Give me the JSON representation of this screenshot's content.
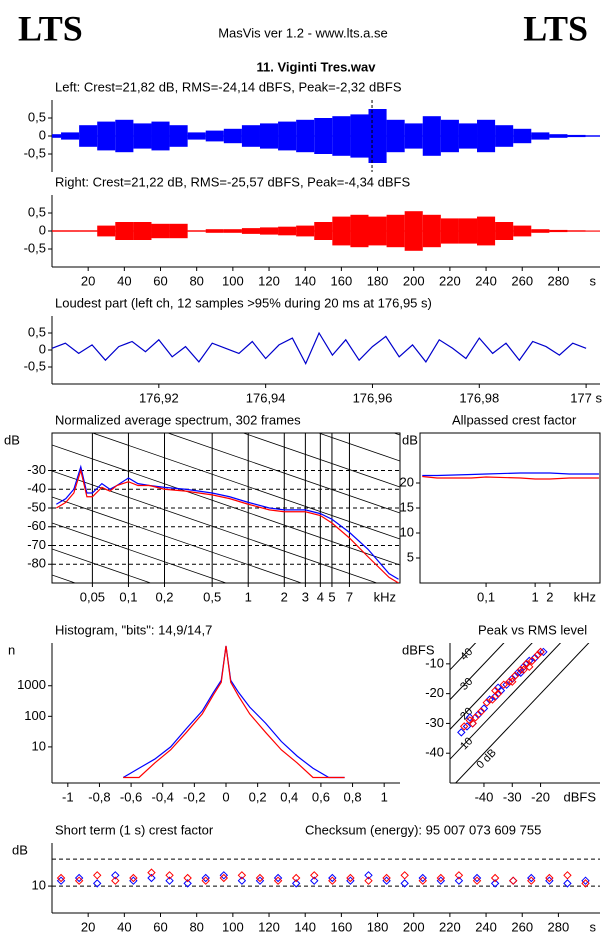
{
  "header": {
    "left": "LTS",
    "center": "MasVis ver 1.2 - www.lts.a.se",
    "right": "LTS",
    "file": "11. Viginti Tres.wav"
  },
  "chart_data": [
    {
      "type": "area",
      "title": "Left: Crest=21,82 dB, RMS=-24,14 dBFS, Peak=-2,32 dBFS",
      "x": [
        0,
        10,
        20,
        30,
        40,
        50,
        60,
        70,
        80,
        90,
        100,
        110,
        120,
        130,
        140,
        150,
        160,
        170,
        180,
        190,
        200,
        210,
        220,
        230,
        240,
        250,
        260,
        270,
        280,
        290,
        300
      ],
      "series": [
        {
          "color": "#0000ff",
          "values": [
            0.05,
            0.1,
            0.3,
            0.4,
            0.45,
            0.35,
            0.4,
            0.3,
            0.1,
            0.15,
            0.2,
            0.3,
            0.35,
            0.4,
            0.45,
            0.5,
            0.55,
            0.6,
            0.75,
            0.45,
            0.35,
            0.55,
            0.45,
            0.35,
            0.45,
            0.3,
            0.2,
            0.1,
            0.05,
            0.03,
            0.02
          ]
        }
      ],
      "marker": 176.95,
      "xlim": [
        0,
        303
      ],
      "ylim": [
        -1,
        1
      ],
      "yticks": [
        {
          "value": 0.5,
          "label": "0,5"
        },
        0,
        {
          "value": -0.5,
          "label": "-0,5"
        }
      ]
    },
    {
      "type": "area",
      "title": "Right: Crest=21,22 dB, RMS=-25,57 dBFS, Peak=-4,34 dBFS",
      "x": [
        0,
        10,
        20,
        30,
        40,
        50,
        60,
        70,
        80,
        90,
        100,
        110,
        120,
        130,
        140,
        150,
        160,
        170,
        180,
        190,
        200,
        210,
        220,
        230,
        240,
        250,
        260,
        270,
        280,
        290,
        300
      ],
      "series": [
        {
          "color": "#ff0000",
          "values": [
            0.02,
            0.02,
            0.02,
            0.15,
            0.25,
            0.25,
            0.2,
            0.2,
            0.02,
            0.05,
            0.05,
            0.08,
            0.1,
            0.12,
            0.15,
            0.25,
            0.4,
            0.45,
            0.4,
            0.45,
            0.55,
            0.45,
            0.35,
            0.35,
            0.4,
            0.25,
            0.15,
            0.05,
            0.03,
            0.02,
            0.01
          ]
        }
      ],
      "xlim": [
        0,
        303
      ],
      "ylim": [
        -1,
        1
      ],
      "yticks": [
        {
          "value": 0.5,
          "label": "0,5"
        },
        0,
        {
          "value": -0.5,
          "label": "-0,5"
        }
      ],
      "xticks": [
        20,
        40,
        60,
        80,
        100,
        120,
        140,
        160,
        180,
        200,
        220,
        240,
        260,
        280
      ],
      "xlabel": "s"
    },
    {
      "type": "line",
      "title": "Loudest part (left  ch, 12 samples >95% during 20 ms at 176,95 s)",
      "x": [
        176.9,
        176.9025,
        176.905,
        176.9075,
        176.91,
        176.9125,
        176.915,
        176.9175,
        176.92,
        176.9225,
        176.925,
        176.9275,
        176.93,
        176.9325,
        176.935,
        176.9375,
        176.94,
        176.9425,
        176.945,
        176.9475,
        176.95,
        176.9525,
        176.955,
        176.9575,
        176.96,
        176.9625,
        176.965,
        176.9675,
        176.97,
        176.9725,
        176.975,
        176.9775,
        176.98,
        176.9825,
        176.985,
        176.9875,
        176.99,
        176.9925,
        176.995,
        176.9975,
        177
      ],
      "series": [
        {
          "color": "#0000cc",
          "values": [
            0.05,
            0.2,
            -0.1,
            0.15,
            -0.3,
            0.1,
            0.25,
            -0.05,
            0.3,
            -0.2,
            0.1,
            -0.35,
            0.2,
            0.05,
            -0.1,
            0.25,
            -0.25,
            0.15,
            0.35,
            -0.4,
            0.5,
            -0.15,
            0.3,
            -0.3,
            0.1,
            0.4,
            -0.2,
            0.15,
            -0.35,
            0.3,
            0.05,
            -0.25,
            0.35,
            -0.1,
            0.2,
            -0.3,
            0.25,
            0.1,
            -0.15,
            0.2,
            0.05
          ]
        }
      ],
      "xlim": [
        176.9,
        177.0026
      ],
      "ylim": [
        -1,
        1
      ],
      "yticks": [
        {
          "value": 0.5,
          "label": "0,5"
        },
        0,
        {
          "value": -0.5,
          "label": "-0,5"
        }
      ],
      "xticks": [
        {
          "value": 176.92,
          "label": "176,92"
        },
        {
          "value": 176.94,
          "label": "176,94"
        },
        {
          "value": 176.96,
          "label": "176,96"
        },
        {
          "value": 176.98,
          "label": "176,98"
        },
        {
          "value": 177,
          "label": "177 s"
        }
      ]
    },
    {
      "type": "line",
      "title": "Normalized average spectrum, 302 frames",
      "xlog": true,
      "grid": true,
      "x": [
        0.025,
        0.03,
        0.035,
        0.04,
        0.045,
        0.05,
        0.06,
        0.07,
        0.08,
        0.1,
        0.12,
        0.15,
        0.2,
        0.3,
        0.5,
        0.7,
        1,
        1.5,
        2,
        3,
        4,
        5,
        7,
        10,
        15,
        18
      ],
      "series": [
        {
          "color": "#0000ff",
          "values": [
            -48,
            -45,
            -40,
            -28,
            -42,
            -42,
            -37,
            -40,
            -38,
            -34,
            -37,
            -38,
            -39,
            -40,
            -42,
            -44,
            -47,
            -50,
            -51,
            -51,
            -53,
            -56,
            -63,
            -72,
            -85,
            -88
          ]
        },
        {
          "color": "#ff0000",
          "values": [
            -50,
            -47,
            -42,
            -30,
            -44,
            -44,
            -39,
            -41,
            -38,
            -36,
            -38,
            -38,
            -40,
            -41,
            -43,
            -45,
            -48,
            -51,
            -52,
            -52,
            -54,
            -58,
            -66,
            -76,
            -87,
            -90
          ]
        }
      ],
      "xlim": [
        0.023,
        18.5
      ],
      "ylim": [
        -90,
        -10
      ],
      "ylabel": "dB",
      "yticks": [
        -30,
        -40,
        -50,
        -60,
        -70,
        -80
      ],
      "xticks": [
        {
          "value": 0.05,
          "label": "0,05"
        },
        {
          "value": 0.1,
          "label": "0,1"
        },
        {
          "value": 0.2,
          "label": "0,2"
        },
        {
          "value": 0.5,
          "label": "0,5"
        },
        1,
        2,
        3,
        4,
        5,
        7
      ],
      "xlabel": "kHz"
    },
    {
      "type": "line",
      "title": "Allpassed crest factor",
      "xlog": true,
      "x": [
        0.005,
        0.01,
        0.05,
        0.1,
        0.5,
        1,
        2,
        5,
        10,
        20
      ],
      "series": [
        {
          "color": "#0000ff",
          "values": [
            21.5,
            21.5,
            21.7,
            21.8,
            22,
            22,
            22,
            21.8,
            21.8,
            21.8
          ]
        },
        {
          "color": "#ff0000",
          "values": [
            21.3,
            21,
            21,
            21.2,
            21,
            20.8,
            20.8,
            21,
            21,
            21
          ]
        }
      ],
      "xlim": [
        0.0045,
        21
      ],
      "ylim": [
        0,
        30
      ],
      "ylabel": "dB",
      "yticks": [
        20,
        15,
        10,
        5
      ],
      "xticks": [
        {
          "value": 0.1,
          "label": "0,1"
        },
        1,
        2
      ],
      "xlabel": "kHz"
    },
    {
      "type": "line",
      "title": "Histogram, \"bits\": 14,9/14,7",
      "ylog": true,
      "x": [
        -0.65,
        -0.55,
        -0.45,
        -0.35,
        -0.25,
        -0.15,
        -0.08,
        -0.03,
        0,
        0.03,
        0.08,
        0.15,
        0.25,
        0.35,
        0.45,
        0.55,
        0.65,
        0.75
      ],
      "series": [
        {
          "color": "#0000ff",
          "values": [
            1,
            2,
            4,
            10,
            40,
            150,
            600,
            1500,
            20000,
            1500,
            600,
            200,
            60,
            15,
            5,
            2,
            1,
            1
          ]
        },
        {
          "color": "#ff0000",
          "values": [
            1,
            1,
            3,
            8,
            30,
            120,
            500,
            1300,
            20000,
            1300,
            450,
            120,
            30,
            8,
            3,
            1,
            1,
            1
          ]
        }
      ],
      "xlim": [
        -1.1,
        1.1
      ],
      "ylim": [
        0.66,
        25000
      ],
      "ylabel": "n",
      "yticks": [
        1000,
        100,
        10
      ],
      "xticks": [
        -1,
        {
          "value": -0.8,
          "label": "-0,8"
        },
        {
          "value": -0.6,
          "label": "-0,6"
        },
        {
          "value": -0.4,
          "label": "-0,4"
        },
        {
          "value": -0.2,
          "label": "-0,2"
        },
        0,
        {
          "value": 0.2,
          "label": "0,2"
        },
        {
          "value": 0.4,
          "label": "0,4"
        },
        {
          "value": 0.6,
          "label": "0,6"
        },
        {
          "value": 0.8,
          "label": "0,8"
        },
        1
      ]
    },
    {
      "type": "scatter",
      "title": "Peak vs RMS level",
      "series": [
        {
          "color": "#0000ff",
          "x": [
            -48,
            -46,
            -44,
            -42,
            -40,
            -38,
            -36,
            -34,
            -32,
            -30,
            -28,
            -26,
            -24,
            -22,
            -20,
            -19,
            -45,
            -35,
            -25,
            -27
          ],
          "values": [
            -33,
            -31,
            -30,
            -27,
            -25,
            -22,
            -21,
            -19,
            -17,
            -15,
            -13,
            -11,
            -9,
            -8,
            -6,
            -6,
            -28,
            -18,
            -10,
            -13
          ]
        },
        {
          "color": "#ff0000",
          "x": [
            -47,
            -45,
            -43,
            -41,
            -39,
            -37,
            -35,
            -33,
            -31,
            -29,
            -27,
            -25,
            -23,
            -21,
            -20,
            -44,
            -36,
            -30,
            -24,
            -26
          ],
          "values": [
            -31,
            -29,
            -28,
            -26,
            -23,
            -22,
            -20,
            -17,
            -16,
            -14,
            -12,
            -10,
            -9,
            -7,
            -6,
            -30,
            -19,
            -16,
            -11,
            -12
          ]
        }
      ],
      "crest_lines": [
        {
          "value": 40,
          "label": "40"
        },
        {
          "value": 30,
          "label": "30"
        },
        {
          "value": 20,
          "label": "20"
        },
        {
          "value": 10,
          "label": "10"
        },
        {
          "value": 0,
          "label": "0 dB"
        }
      ],
      "xlim": [
        -52,
        1
      ],
      "ylim": [
        -50,
        -3
      ],
      "ylabel": "dBFS",
      "yticks": [
        -10,
        -20,
        -30,
        -40
      ],
      "xticks": [
        -40,
        -30,
        -20
      ],
      "xlabel": "dBFS"
    },
    {
      "type": "scatter",
      "title": "Short term (1 s) crest factor",
      "checksum": "Checksum (energy):   95 007 073 609 755",
      "x": [
        5,
        15,
        25,
        35,
        45,
        55,
        65,
        75,
        85,
        95,
        105,
        115,
        125,
        135,
        145,
        155,
        165,
        175,
        185,
        195,
        205,
        215,
        225,
        235,
        245,
        255,
        265,
        275,
        285,
        295
      ],
      "series": [
        {
          "color": "#0000ff",
          "values": [
            12,
            13,
            11,
            14,
            12,
            13,
            12,
            11,
            13,
            14,
            12,
            12,
            13,
            11,
            12,
            13,
            12,
            14,
            12,
            11,
            13,
            12,
            12,
            13,
            11,
            12,
            13,
            12,
            11,
            12
          ]
        },
        {
          "color": "#ff0000",
          "values": [
            13,
            12,
            14,
            12,
            13,
            15,
            14,
            13,
            12,
            13,
            14,
            13,
            12,
            13,
            14,
            12,
            13,
            12,
            13,
            14,
            12,
            13,
            14,
            12,
            13,
            12,
            12,
            13,
            14,
            11
          ]
        }
      ],
      "xlim": [
        0,
        303
      ],
      "ylim": [
        0,
        26
      ],
      "ylabel": "dB",
      "yticks": [
        10
      ],
      "ygrid": [
        10,
        20
      ],
      "xticks": [
        20,
        40,
        60,
        80,
        100,
        120,
        140,
        160,
        180,
        200,
        220,
        240,
        260,
        280
      ],
      "xlabel": "s"
    }
  ]
}
